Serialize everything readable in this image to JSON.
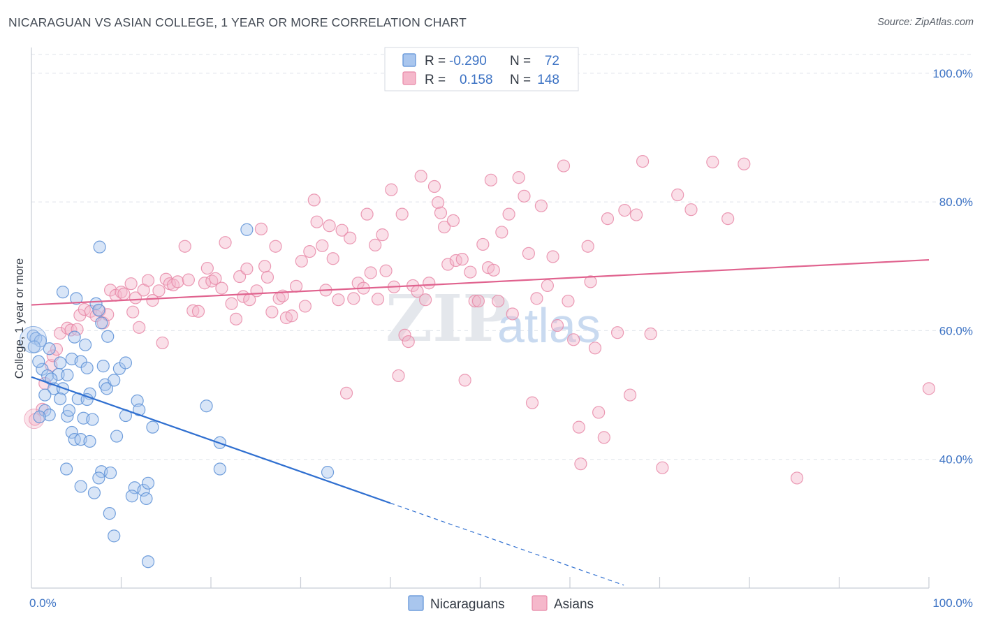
{
  "title": "NICARAGUAN VS ASIAN COLLEGE, 1 YEAR OR MORE CORRELATION CHART",
  "source": "Source: ZipAtlas.com",
  "watermark": {
    "zip": "ZIP",
    "atlas": "atlas"
  },
  "colors": {
    "blue_fill": "#a9c6ee",
    "blue_stroke": "#5b8fd6",
    "blue_line": "#2f6fd0",
    "pink_fill": "#f5b8cb",
    "pink_stroke": "#e889a8",
    "pink_line": "#e0628e",
    "grid": "#dfe3ea",
    "label": "#3d73c4"
  },
  "legend": {
    "r_label": "R =",
    "n_label": "N =",
    "rows": [
      {
        "r": "-0.290",
        "n": "72",
        "color": "blue"
      },
      {
        "r": "0.158",
        "n": "148",
        "color": "pink"
      }
    ]
  },
  "chart_data": {
    "type": "scatter",
    "title": "NICARAGUAN VS ASIAN COLLEGE, 1 YEAR OR MORE CORRELATION CHART",
    "xlabel": "",
    "ylabel": "College, 1 year or more",
    "xlim": [
      0,
      100
    ],
    "ylim": [
      20,
      104
    ],
    "x_tick_labels": [
      "0.0%",
      "100.0%"
    ],
    "y_ticks": [
      {
        "value": 40,
        "label": "40.0%"
      },
      {
        "value": 60,
        "label": "60.0%"
      },
      {
        "value": 80,
        "label": "80.0%"
      },
      {
        "value": 100,
        "label": "100.0%"
      }
    ],
    "series": [
      {
        "name": "Nicaraguans",
        "color": "blue",
        "r": -0.29,
        "n": 72,
        "trend": {
          "x0": 0,
          "y0": 52.8,
          "x1": 40,
          "y1": 33.2,
          "dash_to_x": 66
        },
        "points": [
          [
            0.2,
            59.2
          ],
          [
            0.5,
            58.8
          ],
          [
            1,
            58.4
          ],
          [
            1.2,
            54
          ],
          [
            0.8,
            55.2
          ],
          [
            3.5,
            66
          ],
          [
            5,
            65
          ],
          [
            7.2,
            64.2
          ],
          [
            7.5,
            63.2
          ],
          [
            7.8,
            61.2
          ],
          [
            2,
            57.2
          ],
          [
            3.2,
            55
          ],
          [
            4.5,
            55.6
          ],
          [
            5.5,
            55.2
          ],
          [
            6.2,
            54.2
          ],
          [
            4.8,
            59
          ],
          [
            8.5,
            59.1
          ],
          [
            1.8,
            53
          ],
          [
            3,
            53.2
          ],
          [
            4,
            53.1
          ],
          [
            8,
            54.5
          ],
          [
            9.8,
            54.1
          ],
          [
            10.5,
            55
          ],
          [
            2.5,
            51
          ],
          [
            3.5,
            51
          ],
          [
            6.5,
            50.2
          ],
          [
            8.2,
            51.6
          ],
          [
            8.4,
            51
          ],
          [
            1.5,
            50
          ],
          [
            3.2,
            49.4
          ],
          [
            5.2,
            49.4
          ],
          [
            6.2,
            49.3
          ],
          [
            11.8,
            49.1
          ],
          [
            1.5,
            47.6
          ],
          [
            2,
            46.9
          ],
          [
            4,
            46.7
          ],
          [
            5.8,
            46.4
          ],
          [
            6.8,
            46.2
          ],
          [
            10.5,
            46.8
          ],
          [
            13.5,
            45
          ],
          [
            4.5,
            44.2
          ],
          [
            4.8,
            43.1
          ],
          [
            5.5,
            43.1
          ],
          [
            6.5,
            42.8
          ],
          [
            9.5,
            43.6
          ],
          [
            19.5,
            48.3
          ],
          [
            21,
            42.6
          ],
          [
            7.6,
            73
          ],
          [
            24,
            75.7
          ],
          [
            3.9,
            38.5
          ],
          [
            7.8,
            38.1
          ],
          [
            8.8,
            37.9
          ],
          [
            7.5,
            37.1
          ],
          [
            5.5,
            35.8
          ],
          [
            7,
            34.8
          ],
          [
            11.5,
            35.6
          ],
          [
            12.5,
            35.2
          ],
          [
            13,
            36.3
          ],
          [
            11.2,
            34.3
          ],
          [
            12.8,
            33.9
          ],
          [
            21,
            38.5
          ],
          [
            33,
            38
          ],
          [
            8.7,
            31.6
          ],
          [
            9.2,
            28.1
          ],
          [
            13,
            24.1
          ],
          [
            0.3,
            57.5
          ],
          [
            2.2,
            52.5
          ],
          [
            6,
            57.8
          ],
          [
            9.2,
            52.3
          ],
          [
            4.2,
            47.6
          ],
          [
            0.9,
            46.6
          ],
          [
            12,
            47.7
          ]
        ]
      },
      {
        "name": "Asians",
        "color": "pink",
        "r": 0.158,
        "n": 148,
        "trend": {
          "x0": 0,
          "y0": 64,
          "x1": 100,
          "y1": 71
        },
        "points": [
          [
            0.4,
            46.2
          ],
          [
            1.2,
            47.8
          ],
          [
            1.5,
            51.8
          ],
          [
            2.2,
            54.6
          ],
          [
            2.4,
            56.1
          ],
          [
            2.8,
            57.1
          ],
          [
            3.2,
            59.6
          ],
          [
            4.0,
            60.4
          ],
          [
            4.4,
            60.1
          ],
          [
            5.1,
            60.2
          ],
          [
            5.4,
            62.4
          ],
          [
            5.9,
            63.3
          ],
          [
            6.6,
            63.0
          ],
          [
            7.2,
            62.3
          ],
          [
            7.6,
            63.1
          ],
          [
            8.0,
            61.2
          ],
          [
            8.5,
            62.5
          ],
          [
            8.8,
            66.3
          ],
          [
            9.4,
            65.5
          ],
          [
            10.0,
            66.0
          ],
          [
            10.3,
            65.7
          ],
          [
            11.1,
            67.3
          ],
          [
            11.3,
            62.9
          ],
          [
            11.6,
            65.1
          ],
          [
            12.0,
            60.5
          ],
          [
            12.5,
            66.3
          ],
          [
            13.0,
            67.8
          ],
          [
            13.5,
            64.7
          ],
          [
            14.2,
            66.2
          ],
          [
            14.6,
            58.1
          ],
          [
            15.0,
            68.0
          ],
          [
            15.4,
            67.3
          ],
          [
            15.8,
            67.1
          ],
          [
            16.3,
            67.6
          ],
          [
            17.1,
            73.1
          ],
          [
            17.5,
            67.9
          ],
          [
            18.0,
            63.1
          ],
          [
            18.6,
            63.0
          ],
          [
            19.3,
            67.4
          ],
          [
            19.6,
            69.7
          ],
          [
            20.1,
            67.7
          ],
          [
            20.5,
            68.1
          ],
          [
            21.2,
            66.6
          ],
          [
            21.6,
            73.7
          ],
          [
            22.3,
            64.2
          ],
          [
            22.8,
            61.8
          ],
          [
            23.2,
            68.4
          ],
          [
            23.6,
            65.3
          ],
          [
            24.0,
            69.6
          ],
          [
            24.3,
            64.8
          ],
          [
            25.1,
            66.2
          ],
          [
            25.6,
            75.8
          ],
          [
            26.0,
            70.0
          ],
          [
            26.3,
            68.3
          ],
          [
            26.8,
            62.9
          ],
          [
            27.2,
            73.1
          ],
          [
            27.6,
            65.0
          ],
          [
            28.0,
            65.4
          ],
          [
            28.4,
            62.0
          ],
          [
            29.0,
            62.3
          ],
          [
            29.5,
            66.9
          ],
          [
            30.1,
            70.8
          ],
          [
            30.5,
            63.8
          ],
          [
            31.0,
            72.3
          ],
          [
            31.5,
            80.3
          ],
          [
            31.8,
            76.9
          ],
          [
            32.4,
            73.2
          ],
          [
            32.8,
            66.3
          ],
          [
            33.2,
            76.3
          ],
          [
            33.6,
            71.2
          ],
          [
            34.2,
            64.8
          ],
          [
            34.6,
            75.6
          ],
          [
            35.1,
            50.3
          ],
          [
            35.5,
            74.4
          ],
          [
            35.9,
            65.0
          ],
          [
            36.4,
            67.4
          ],
          [
            37.0,
            66.6
          ],
          [
            37.4,
            78.1
          ],
          [
            37.8,
            69.0
          ],
          [
            38.3,
            73.3
          ],
          [
            38.6,
            64.9
          ],
          [
            39.1,
            74.9
          ],
          [
            39.5,
            69.3
          ],
          [
            40.1,
            81.9
          ],
          [
            40.4,
            66.8
          ],
          [
            40.9,
            53.0
          ],
          [
            41.3,
            78.1
          ],
          [
            41.6,
            59.3
          ],
          [
            42.0,
            58.3
          ],
          [
            42.5,
            67.0
          ],
          [
            43.0,
            66.1
          ],
          [
            43.4,
            84.0
          ],
          [
            43.9,
            64.8
          ],
          [
            44.3,
            67.4
          ],
          [
            44.9,
            82.4
          ],
          [
            45.3,
            79.9
          ],
          [
            45.6,
            78.3
          ],
          [
            46.0,
            76.1
          ],
          [
            46.4,
            70.3
          ],
          [
            47.0,
            77.1
          ],
          [
            47.3,
            70.9
          ],
          [
            48.0,
            71.1
          ],
          [
            48.3,
            52.3
          ],
          [
            48.9,
            69.1
          ],
          [
            49.4,
            64.6
          ],
          [
            49.8,
            64.6
          ],
          [
            50.3,
            73.4
          ],
          [
            50.9,
            69.8
          ],
          [
            51.2,
            83.4
          ],
          [
            51.5,
            69.4
          ],
          [
            52.0,
            64.6
          ],
          [
            52.4,
            75.3
          ],
          [
            53.2,
            78.1
          ],
          [
            53.6,
            62.6
          ],
          [
            54.3,
            83.8
          ],
          [
            54.9,
            80.9
          ],
          [
            55.4,
            72.0
          ],
          [
            55.8,
            48.8
          ],
          [
            56.3,
            65.0
          ],
          [
            56.8,
            79.4
          ],
          [
            57.5,
            67.0
          ],
          [
            58.1,
            71.5
          ],
          [
            58.6,
            60.8
          ],
          [
            59.3,
            85.6
          ],
          [
            59.8,
            64.6
          ],
          [
            60.4,
            58.6
          ],
          [
            61.0,
            45.0
          ],
          [
            61.2,
            39.3
          ],
          [
            62.0,
            73.1
          ],
          [
            62.3,
            67.6
          ],
          [
            62.8,
            57.3
          ],
          [
            63.2,
            47.3
          ],
          [
            63.8,
            43.4
          ],
          [
            64.2,
            77.4
          ],
          [
            65.3,
            59.7
          ],
          [
            66.1,
            78.7
          ],
          [
            66.7,
            50.0
          ],
          [
            67.4,
            78.0
          ],
          [
            68.1,
            86.3
          ],
          [
            69.0,
            59.5
          ],
          [
            70.3,
            38.7
          ],
          [
            72.0,
            81.1
          ],
          [
            73.5,
            78.8
          ],
          [
            75.9,
            86.2
          ],
          [
            77.6,
            77.4
          ],
          [
            79.4,
            85.9
          ],
          [
            85.3,
            37.1
          ],
          [
            100.0,
            51.0
          ]
        ]
      }
    ]
  },
  "bottom_legend": [
    "Nicaraguans",
    "Asians"
  ]
}
